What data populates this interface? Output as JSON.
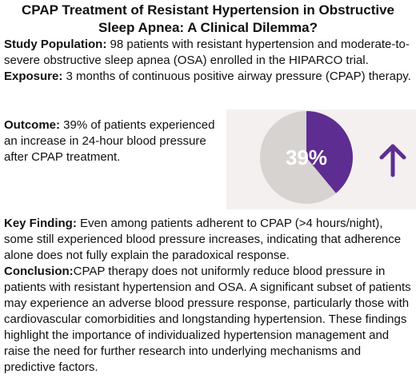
{
  "title_line1": "CPAP Treatment of Resistant Hypertension in Obstructive",
  "title_line2": "Sleep Apnea: A Clinical Dilemma?",
  "study_population": {
    "label": "Study Population:",
    "text": " 98 patients with resistant hypertension and moderate-to-severe obstructive sleep apnea (OSA) enrolled in the HIPARCO trial."
  },
  "exposure": {
    "label": "Exposure:",
    "text": " 3 months of continuous positive airway pressure (CPAP) therapy."
  },
  "outcome": {
    "label": "Outcome:",
    "text": " 39% of patients experienced an increase in 24-hour blood pressure after CPAP treatment."
  },
  "pie": {
    "label": "39%",
    "percent": 39,
    "arrow_icon": "up-arrow-icon",
    "colors": {
      "highlight": "#5e2d91",
      "rest": "#d6d3d1",
      "arrow": "#5e2d91",
      "panel": "#f3f0ef"
    }
  },
  "key_finding": {
    "label": "Key Finding:",
    "text": " Even among patients adherent to CPAP (>4 hours/night), some still experienced blood pressure increases, indicating that adherence alone does not fully explain the paradoxical response."
  },
  "conclusion": {
    "label": "Conclusion:",
    "text": "CPAP therapy does not uniformly reduce blood pressure in patients with resistant hypertension and OSA. A significant subset of patients may experience an adverse blood pressure response, particularly those with cardiovascular comorbidities and longstanding hypertension. These findings highlight the importance of individualized hypertension management and raise the need for further research into underlying mechanisms and predictive factors."
  }
}
